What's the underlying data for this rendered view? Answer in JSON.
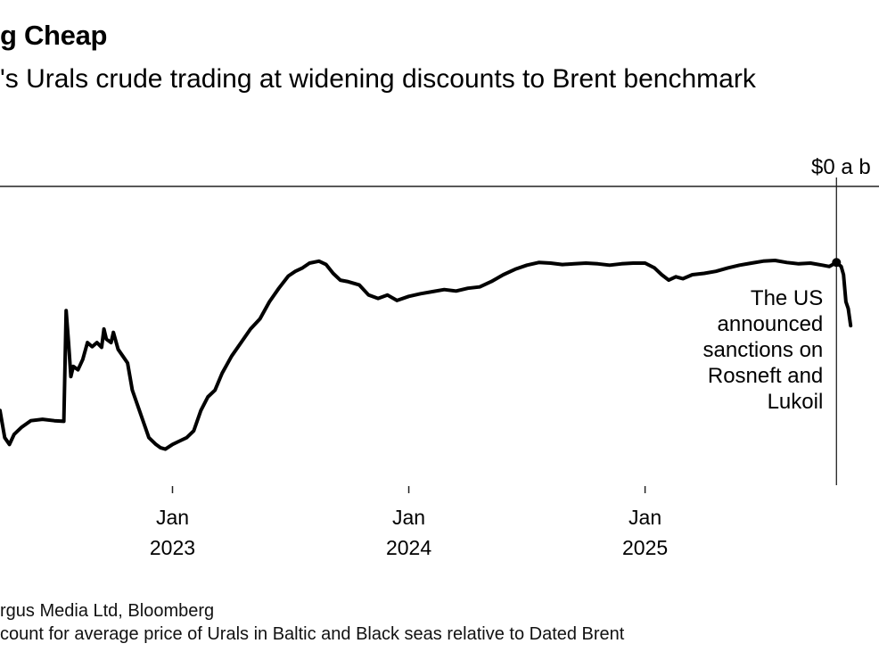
{
  "chart_data": {
    "type": "line",
    "title": "g Cheap",
    "subtitle": "'s Urals crude trading at widening discounts to Brent benchmark",
    "ylabel": "$0 a b",
    "xlabel": "",
    "x_ticks": [
      {
        "x": 2023.0,
        "label1": "Jan",
        "label2": "2023"
      },
      {
        "x": 2024.0,
        "label1": "Jan",
        "label2": "2024"
      },
      {
        "x": 2025.0,
        "label1": "Jan",
        "label2": "2025"
      }
    ],
    "xlim": [
      2022.27,
      2025.99
    ],
    "ylim": [
      -44,
      0
    ],
    "reference_line": {
      "y": 0
    },
    "event": {
      "x": 2025.81,
      "label_lines": [
        "The US",
        "announced",
        "sanctions on",
        "Rosneft and",
        "Lukoil"
      ]
    },
    "series": [
      {
        "name": "Urals discount to Dated Brent ($/bbl)",
        "points": [
          [
            2022.27,
            -33.0
          ],
          [
            2022.29,
            -37.0
          ],
          [
            2022.31,
            -38.0
          ],
          [
            2022.33,
            -36.5
          ],
          [
            2022.36,
            -35.5
          ],
          [
            2022.4,
            -34.5
          ],
          [
            2022.45,
            -34.3
          ],
          [
            2022.5,
            -34.5
          ],
          [
            2022.54,
            -34.6
          ],
          [
            2022.55,
            -18.3
          ],
          [
            2022.56,
            -23.0
          ],
          [
            2022.57,
            -28.0
          ],
          [
            2022.58,
            -26.5
          ],
          [
            2022.6,
            -27.0
          ],
          [
            2022.62,
            -25.5
          ],
          [
            2022.64,
            -23.0
          ],
          [
            2022.66,
            -23.6
          ],
          [
            2022.68,
            -23.0
          ],
          [
            2022.7,
            -23.7
          ],
          [
            2022.71,
            -21.0
          ],
          [
            2022.72,
            -22.5
          ],
          [
            2022.74,
            -23.0
          ],
          [
            2022.75,
            -21.5
          ],
          [
            2022.77,
            -24.0
          ],
          [
            2022.79,
            -25.0
          ],
          [
            2022.81,
            -26.0
          ],
          [
            2022.83,
            -30.0
          ],
          [
            2022.86,
            -33.0
          ],
          [
            2022.88,
            -35.0
          ],
          [
            2022.9,
            -37.0
          ],
          [
            2022.93,
            -38.0
          ],
          [
            2022.95,
            -38.5
          ],
          [
            2022.97,
            -38.7
          ],
          [
            2023.0,
            -38.0
          ],
          [
            2023.03,
            -37.5
          ],
          [
            2023.06,
            -37.0
          ],
          [
            2023.09,
            -36.0
          ],
          [
            2023.12,
            -33.0
          ],
          [
            2023.15,
            -31.0
          ],
          [
            2023.18,
            -30.0
          ],
          [
            2023.21,
            -27.5
          ],
          [
            2023.25,
            -25.0
          ],
          [
            2023.29,
            -23.0
          ],
          [
            2023.33,
            -21.0
          ],
          [
            2023.37,
            -19.5
          ],
          [
            2023.41,
            -17.0
          ],
          [
            2023.45,
            -15.0
          ],
          [
            2023.49,
            -13.2
          ],
          [
            2023.52,
            -12.5
          ],
          [
            2023.55,
            -12.0
          ],
          [
            2023.58,
            -11.3
          ],
          [
            2023.62,
            -11.0
          ],
          [
            2023.65,
            -11.5
          ],
          [
            2023.68,
            -12.8
          ],
          [
            2023.71,
            -13.8
          ],
          [
            2023.74,
            -14.0
          ],
          [
            2023.79,
            -14.5
          ],
          [
            2023.83,
            -16.0
          ],
          [
            2023.87,
            -16.5
          ],
          [
            2023.91,
            -16.0
          ],
          [
            2023.95,
            -16.8
          ],
          [
            2024.0,
            -16.2
          ],
          [
            2024.05,
            -15.8
          ],
          [
            2024.1,
            -15.5
          ],
          [
            2024.15,
            -15.2
          ],
          [
            2024.2,
            -15.4
          ],
          [
            2024.25,
            -15.0
          ],
          [
            2024.3,
            -14.8
          ],
          [
            2024.35,
            -14.0
          ],
          [
            2024.4,
            -13.0
          ],
          [
            2024.45,
            -12.2
          ],
          [
            2024.5,
            -11.6
          ],
          [
            2024.55,
            -11.2
          ],
          [
            2024.6,
            -11.3
          ],
          [
            2024.65,
            -11.5
          ],
          [
            2024.7,
            -11.4
          ],
          [
            2024.75,
            -11.3
          ],
          [
            2024.8,
            -11.4
          ],
          [
            2024.85,
            -11.6
          ],
          [
            2024.9,
            -11.4
          ],
          [
            2024.95,
            -11.3
          ],
          [
            2025.0,
            -11.3
          ],
          [
            2025.04,
            -12.0
          ],
          [
            2025.07,
            -13.0
          ],
          [
            2025.1,
            -13.8
          ],
          [
            2025.13,
            -13.3
          ],
          [
            2025.16,
            -13.6
          ],
          [
            2025.2,
            -13.0
          ],
          [
            2025.25,
            -12.8
          ],
          [
            2025.3,
            -12.5
          ],
          [
            2025.35,
            -12.0
          ],
          [
            2025.4,
            -11.6
          ],
          [
            2025.45,
            -11.3
          ],
          [
            2025.5,
            -11.0
          ],
          [
            2025.55,
            -10.9
          ],
          [
            2025.6,
            -11.2
          ],
          [
            2025.65,
            -11.4
          ],
          [
            2025.7,
            -11.3
          ],
          [
            2025.75,
            -11.6
          ],
          [
            2025.78,
            -11.8
          ],
          [
            2025.81,
            -11.2
          ],
          [
            2025.83,
            -11.8
          ],
          [
            2025.84,
            -13.0
          ],
          [
            2025.85,
            -17.0
          ],
          [
            2025.86,
            -18.0
          ],
          [
            2025.87,
            -20.5
          ]
        ]
      }
    ],
    "grid": false,
    "legend": "none"
  },
  "footer": {
    "source": "rgus Media Ltd, Bloomberg",
    "note": "count for average price of Urals in Baltic and Black seas relative to Dated Brent"
  },
  "colors": {
    "line": "#000000",
    "axis": "#222222",
    "text": "#000000"
  }
}
